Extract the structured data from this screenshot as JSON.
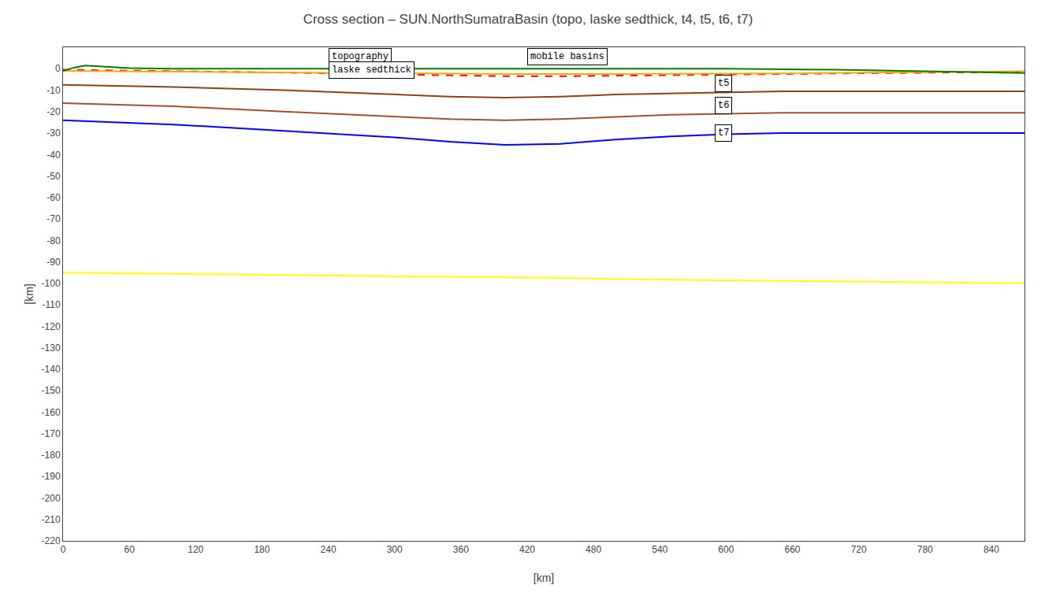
{
  "chart_data": {
    "type": "line",
    "title": "Cross section – SUN.NorthSumatraBasin (topo, laske sedthick, t4, t5, t6, t7)",
    "xlabel": "[km]",
    "ylabel": "[km]",
    "xlim": [
      0,
      870
    ],
    "ylim": [
      -220,
      10
    ],
    "xticks": [
      0,
      60,
      120,
      180,
      240,
      300,
      360,
      420,
      480,
      540,
      600,
      660,
      720,
      780,
      840
    ],
    "yticks": [
      0,
      -10,
      -20,
      -30,
      -40,
      -50,
      -60,
      -70,
      -80,
      -90,
      -100,
      -110,
      -120,
      -130,
      -140,
      -150,
      -160,
      -170,
      -180,
      -190,
      -200,
      -210,
      -220
    ],
    "grid": false,
    "series": [
      {
        "color": "#ffff00",
        "line_style": "solid",
        "x": [
          0,
          100,
          200,
          300,
          400,
          450,
          500,
          600,
          670,
          750,
          870
        ],
        "values": [
          -95.0,
          -95.5,
          -96.0,
          -96.5,
          -97.0,
          -97.5,
          -98.0,
          -98.5,
          -99.0,
          -99.5,
          -100.0
        ]
      },
      {
        "color": "#0000ff",
        "line_style": "solid",
        "x": [
          0,
          100,
          200,
          300,
          350,
          400,
          450,
          500,
          550,
          600,
          650,
          700,
          750,
          800,
          870
        ],
        "values": [
          -24.0,
          -26.0,
          -29.0,
          -32.0,
          -34.0,
          -35.5,
          -35.0,
          -33.0,
          -31.5,
          -30.5,
          -30.0,
          -30.0,
          -30.0,
          -30.0,
          -30.0
        ]
      },
      {
        "color": "#A0522D",
        "line_style": "solid",
        "x": [
          0,
          100,
          200,
          300,
          350,
          400,
          450,
          500,
          550,
          600,
          650,
          700,
          750,
          800,
          870
        ],
        "values": [
          -16.0,
          -17.5,
          -20.0,
          -22.5,
          -23.5,
          -24.0,
          -23.5,
          -22.5,
          -21.5,
          -21.0,
          -20.5,
          -20.5,
          -20.5,
          -20.5,
          -20.5
        ]
      },
      {
        "color": "#8B4513",
        "line_style": "solid",
        "x": [
          0,
          100,
          200,
          300,
          350,
          400,
          450,
          500,
          550,
          600,
          650,
          700,
          750,
          800,
          870
        ],
        "values": [
          -7.5,
          -8.5,
          -10.0,
          -12.0,
          -13.0,
          -13.5,
          -13.0,
          -12.0,
          -11.5,
          -11.0,
          -10.5,
          -10.5,
          -10.5,
          -10.5,
          -10.5
        ]
      },
      {
        "color": "#ff0000",
        "line_style": "dashed",
        "x": [
          0,
          50,
          100,
          150,
          200,
          250,
          300,
          350,
          400,
          450,
          500,
          550,
          600,
          650,
          700,
          750,
          800,
          850,
          870
        ],
        "values": [
          -0.5,
          -0.8,
          -1.0,
          -1.3,
          -1.8,
          -2.2,
          -2.7,
          -3.0,
          -3.5,
          -3.5,
          -3.2,
          -3.0,
          -2.7,
          -2.5,
          -2.2,
          -2.0,
          -1.8,
          -1.5,
          -1.5
        ]
      },
      {
        "color": "#ffa500",
        "line_style": "solid",
        "x": [
          0,
          50,
          100,
          150,
          200,
          250,
          300,
          350,
          400,
          450,
          500,
          550,
          600,
          650,
          700,
          750,
          800,
          850,
          870
        ],
        "values": [
          -1.0,
          -1.2,
          -1.3,
          -1.5,
          -1.7,
          -1.8,
          -2.0,
          -2.2,
          -2.5,
          -2.5,
          -2.5,
          -2.5,
          -2.3,
          -2.2,
          -2.0,
          -1.8,
          -1.5,
          -1.3,
          -1.2
        ]
      },
      {
        "color": "#008000",
        "line_style": "solid",
        "x": [
          0,
          10,
          20,
          30,
          40,
          50,
          60,
          70,
          80,
          90,
          100,
          200,
          300,
          400,
          500,
          600,
          700,
          800,
          870
        ],
        "values": [
          -1.0,
          0.5,
          1.5,
          1.2,
          0.8,
          0.5,
          0.3,
          0.2,
          0.1,
          0.0,
          0.0,
          0.0,
          0.0,
          0.0,
          0.0,
          0.0,
          -0.5,
          -1.5,
          -2.0
        ]
      }
    ],
    "annotations": [
      {
        "text": "topography",
        "x": 240,
        "y": 1.5
      },
      {
        "text": "laske sedthick",
        "x": 240,
        "y": -4.5
      },
      {
        "text": "mobile basins",
        "x": 420,
        "y": 1.5
      },
      {
        "text": "t5",
        "x": 590,
        "y": -11.0
      },
      {
        "text": "t6",
        "x": 590,
        "y": -21.0
      },
      {
        "text": "t7",
        "x": 590,
        "y": -34.0
      }
    ]
  }
}
